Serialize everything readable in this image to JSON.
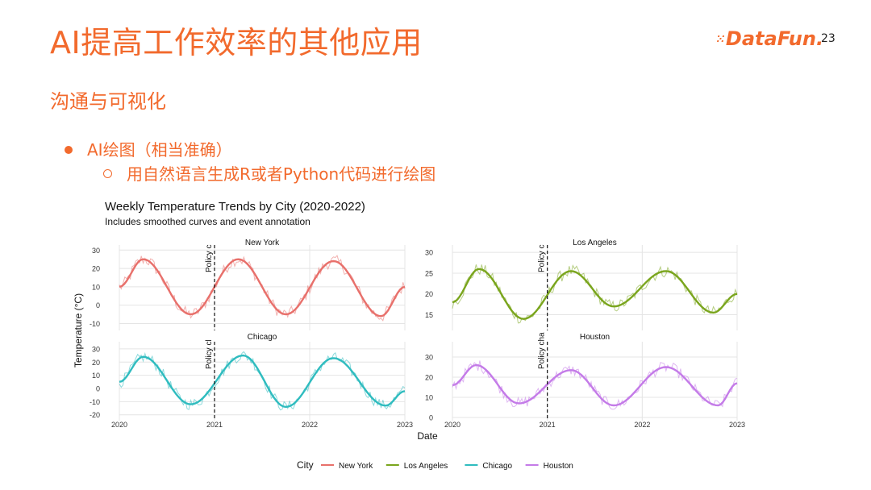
{
  "slide": {
    "title": "AI提高工作效率的其他应用",
    "logo": "DataFun.",
    "page_number": "23",
    "section": "沟通与可视化",
    "bullet": "AI绘图（相当准确）",
    "sub_bullet": "用自然语言生成R或者Python代码进行绘图"
  },
  "colors": {
    "accent": "#f26a2d"
  },
  "chart_data": {
    "type": "line",
    "title": "Weekly Temperature Trends by City (2020-2022)",
    "subtitle": "Includes smoothed curves and event annotation",
    "xlabel": "Date",
    "ylabel": "Temperature (°C)",
    "legend_title": "City",
    "legend_position": "bottom",
    "grid": true,
    "x_ticks": [
      "2020",
      "2021",
      "2022",
      "2023"
    ],
    "xlim": [
      2020,
      2023
    ],
    "annotation": {
      "x": 2021,
      "text": "Policy change",
      "style": "dashed vertical line"
    },
    "series": [
      {
        "name": "New York",
        "color": "#e8706b",
        "panel_label": "New York",
        "ylim": [
          -12,
          31
        ],
        "y_ticks": [
          30,
          20,
          10,
          0,
          -10
        ],
        "annotation_label": "Policy c",
        "smooth": [
          [
            2020.0,
            10
          ],
          [
            2020.25,
            25
          ],
          [
            2020.75,
            -5
          ],
          [
            2021.25,
            25
          ],
          [
            2021.75,
            -5
          ],
          [
            2022.25,
            24
          ],
          [
            2022.75,
            -6
          ],
          [
            2023.0,
            10
          ]
        ]
      },
      {
        "name": "Los Angeles",
        "color": "#7aa51d",
        "panel_label": "Los Angeles",
        "ylim": [
          12,
          31
        ],
        "y_ticks": [
          30,
          25,
          20,
          15
        ],
        "annotation_label": "Policy c",
        "smooth": [
          [
            2020.0,
            18
          ],
          [
            2020.28,
            26
          ],
          [
            2020.75,
            14
          ],
          [
            2021.25,
            25.5
          ],
          [
            2021.7,
            17
          ],
          [
            2022.25,
            25.5
          ],
          [
            2022.75,
            15.5
          ],
          [
            2023.0,
            20
          ]
        ]
      },
      {
        "name": "Chicago",
        "color": "#2fbcbf",
        "panel_label": "Chicago",
        "ylim": [
          -22,
          33
        ],
        "y_ticks": [
          30,
          20,
          10,
          0,
          -10,
          -20
        ],
        "annotation_label": "Policy cl",
        "smooth": [
          [
            2020.0,
            5
          ],
          [
            2020.25,
            24
          ],
          [
            2020.75,
            -12
          ],
          [
            2021.3,
            25
          ],
          [
            2021.75,
            -14
          ],
          [
            2022.25,
            23
          ],
          [
            2022.8,
            -13
          ],
          [
            2023.0,
            -2
          ]
        ]
      },
      {
        "name": "Houston",
        "color": "#c47be8",
        "panel_label": "Houston",
        "ylim": [
          0,
          36
        ],
        "y_ticks": [
          30,
          20,
          10,
          0
        ],
        "annotation_label": "Policy cha",
        "smooth": [
          [
            2020.0,
            16
          ],
          [
            2020.25,
            26
          ],
          [
            2020.7,
            7
          ],
          [
            2021.25,
            23.5
          ],
          [
            2021.7,
            6
          ],
          [
            2022.25,
            25
          ],
          [
            2022.8,
            6
          ],
          [
            2023.0,
            17
          ]
        ]
      }
    ]
  }
}
